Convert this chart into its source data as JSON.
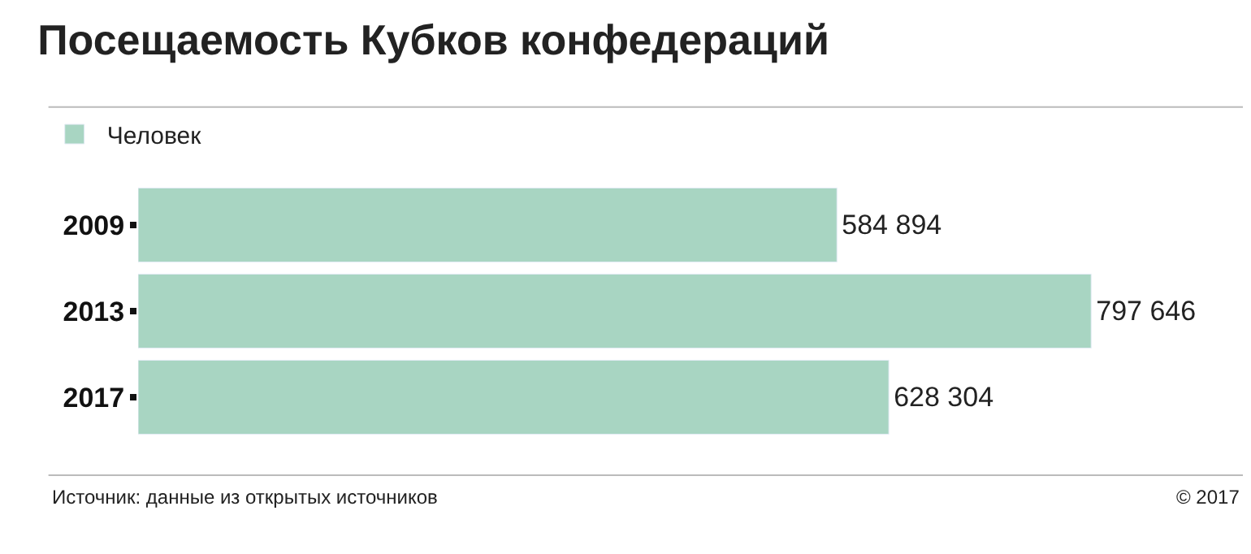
{
  "chart_data": {
    "type": "bar",
    "orientation": "horizontal",
    "title": "Посещаемость Кубков конфедераций",
    "categories": [
      "2009",
      "2013",
      "2017"
    ],
    "series": [
      {
        "name": "Человек",
        "color": "#a8d5c2",
        "values": [
          584894,
          797646,
          628304
        ]
      }
    ],
    "data_labels": true,
    "legend": "top left",
    "tick_labels": "y",
    "annotations": [
      "Источник: данные из открытых источников",
      "© 2017"
    ]
  }
}
